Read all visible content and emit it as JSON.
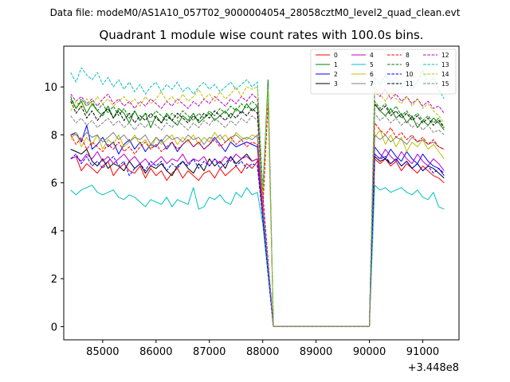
{
  "chart_data": {
    "type": "line",
    "supertitle": "Data file: modeM0/AS1A10_057T02_9000004054_28058cztM0_level2_quad_clean.evt",
    "title": "Quadrant 1 module wise count rates with 100.0s bins.",
    "xlabel": "",
    "ylabel": "",
    "x_offset_label": "+3.448e8",
    "xlim": [
      84270,
      91680
    ],
    "ylim": [
      -0.55,
      11.7
    ],
    "x_ticks": [
      85000,
      86000,
      87000,
      88000,
      89000,
      90000,
      91000
    ],
    "x_tick_labels": [
      "85000",
      "86000",
      "87000",
      "88000",
      "89000",
      "90000",
      "91000"
    ],
    "y_ticks": [
      0,
      2,
      4,
      6,
      8,
      10
    ],
    "y_tick_labels": [
      "0",
      "2",
      "4",
      "6",
      "8",
      "10"
    ],
    "legend_position": "top-right",
    "x_seg1": {
      "start": 84400,
      "step": 100,
      "count": 37
    },
    "x_seg2": {
      "start": 90100,
      "step": 100,
      "count": 14
    },
    "series": [
      {
        "name": "0",
        "color": "#ff0000",
        "dash": "solid",
        "seg1": [
          7.0,
          7.1,
          6.5,
          6.8,
          6.6,
          6.4,
          6.7,
          6.9,
          6.3,
          6.6,
          6.8,
          6.5,
          6.4,
          6.7,
          6.2,
          6.6,
          6.3,
          6.5,
          6.1,
          6.4,
          6.6,
          6.2,
          6.5,
          6.3,
          6.1,
          6.4,
          6.5,
          6.2,
          6.6,
          6.3,
          6.5,
          6.7,
          6.4,
          6.8,
          6.6,
          6.9,
          4.6
        ],
        "seg2": [
          7.0,
          6.8,
          7.0,
          6.7,
          6.9,
          6.5,
          6.8,
          6.6,
          6.4,
          6.7,
          6.5,
          6.3,
          6.2,
          6.0
        ]
      },
      {
        "name": "1",
        "color": "#008000",
        "dash": "solid",
        "seg1": [
          9.5,
          9.1,
          9.4,
          8.9,
          9.3,
          9.0,
          8.8,
          9.2,
          8.7,
          9.1,
          8.9,
          8.5,
          9.0,
          8.6,
          8.9,
          8.3,
          8.8,
          8.5,
          8.9,
          8.6,
          8.4,
          8.8,
          8.6,
          8.9,
          8.5,
          8.7,
          8.9,
          8.6,
          8.8,
          9.0,
          8.7,
          9.1,
          8.9,
          9.3,
          9.0,
          9.2,
          5.5
        ],
        "seg2": [
          9.3,
          9.0,
          8.8,
          9.1,
          8.7,
          8.9,
          8.5,
          8.8,
          8.3,
          8.6,
          8.4,
          8.7,
          8.5,
          8.2
        ]
      },
      {
        "name": "2",
        "color": "#0000ff",
        "dash": "solid",
        "seg1": [
          8.0,
          8.1,
          7.7,
          8.4,
          7.4,
          7.6,
          7.9,
          7.5,
          7.7,
          7.2,
          7.6,
          7.8,
          7.4,
          7.7,
          7.3,
          7.6,
          7.5,
          7.8,
          7.4,
          7.7,
          7.3,
          7.6,
          7.8,
          7.5,
          7.7,
          7.4,
          7.6,
          7.9,
          7.6,
          7.3,
          7.7,
          7.5,
          7.6,
          7.7,
          7.6,
          7.5,
          4.9
        ],
        "seg2": [
          7.5,
          7.2,
          7.0,
          7.4,
          7.1,
          6.9,
          7.3,
          7.0,
          6.8,
          7.2,
          6.9,
          6.7,
          6.6,
          6.3
        ]
      },
      {
        "name": "3",
        "color": "#000000",
        "dash": "solid",
        "seg1": [
          7.4,
          7.3,
          7.2,
          7.4,
          6.9,
          6.7,
          7.0,
          6.6,
          6.8,
          6.7,
          6.5,
          6.9,
          6.6,
          6.8,
          6.4,
          6.7,
          6.6,
          6.8,
          6.5,
          6.3,
          6.7,
          6.9,
          6.6,
          6.4,
          6.8,
          6.5,
          7.0,
          6.7,
          6.9,
          6.6,
          7.1,
          6.8,
          7.0,
          7.2,
          6.9,
          7.0,
          4.7
        ],
        "seg2": [
          7.1,
          6.9,
          7.0,
          6.8,
          7.0,
          6.7,
          6.9,
          6.6,
          6.8,
          6.5,
          6.7,
          6.6,
          6.4,
          6.2
        ]
      },
      {
        "name": "4",
        "color": "#bf00bf",
        "dash": "solid",
        "seg1": [
          7.0,
          7.1,
          6.9,
          7.2,
          7.0,
          7.3,
          6.9,
          7.1,
          6.8,
          7.0,
          7.2,
          6.9,
          7.1,
          6.8,
          7.0,
          6.7,
          6.9,
          7.1,
          6.8,
          7.0,
          6.9,
          7.2,
          6.8,
          7.0,
          6.9,
          7.1,
          6.7,
          7.0,
          6.8,
          7.1,
          6.9,
          7.2,
          7.0,
          7.1,
          6.9,
          7.0,
          4.6
        ],
        "seg2": [
          7.2,
          7.0,
          7.4,
          7.1,
          6.9,
          7.3,
          7.0,
          6.8,
          7.2,
          6.9,
          6.7,
          7.0,
          6.8,
          6.5
        ]
      },
      {
        "name": "5",
        "color": "#00bfbf",
        "dash": "solid",
        "seg1": [
          5.7,
          5.5,
          5.7,
          5.8,
          5.9,
          5.6,
          5.5,
          5.6,
          5.7,
          5.4,
          5.3,
          5.5,
          5.4,
          5.2,
          5.0,
          5.3,
          5.2,
          5.1,
          5.4,
          5.0,
          5.3,
          5.2,
          5.1,
          5.8,
          4.9,
          5.0,
          5.4,
          5.3,
          5.5,
          5.2,
          5.1,
          5.6,
          5.4,
          5.8,
          5.5,
          5.6,
          4.3
        ],
        "seg2": [
          5.9,
          5.7,
          5.8,
          5.6,
          5.7,
          5.8,
          5.6,
          5.5,
          5.7,
          5.4,
          5.3,
          5.6,
          5.0,
          4.9
        ]
      },
      {
        "name": "6",
        "color": "#bfbf00",
        "dash": "solid",
        "seg1": [
          7.8,
          8.1,
          7.5,
          7.9,
          7.6,
          8.0,
          7.4,
          7.8,
          7.6,
          8.0,
          7.5,
          7.7,
          8.0,
          7.6,
          7.8,
          7.4,
          7.9,
          7.6,
          7.8,
          8.0,
          7.6,
          7.9,
          7.7,
          8.0,
          7.6,
          7.9,
          7.7,
          8.1,
          7.8,
          8.0,
          7.7,
          8.1,
          7.9,
          7.8,
          8.0,
          7.9,
          5.0
        ],
        "seg2": [
          7.9,
          8.2,
          7.6,
          8.0,
          7.5,
          7.9,
          7.3,
          7.7,
          7.5,
          7.8,
          7.4,
          7.6,
          7.3,
          7.0
        ]
      },
      {
        "name": "7",
        "color": "#808080",
        "dash": "solid",
        "seg1": [
          8.0,
          8.0,
          7.8,
          8.1,
          7.9,
          8.0,
          7.7,
          7.9,
          8.1,
          7.8,
          8.0,
          7.7,
          7.9,
          7.8,
          8.0,
          7.6,
          7.9,
          7.7,
          8.0,
          7.8,
          7.9,
          7.7,
          8.0,
          7.8,
          7.9,
          7.6,
          7.9,
          7.8,
          8.0,
          7.7,
          7.9,
          8.0,
          7.8,
          7.9,
          7.8,
          8.0,
          5.0
        ],
        "seg2": [
          8.0,
          7.8,
          8.0,
          7.7,
          7.9,
          7.8,
          7.6,
          7.9,
          7.7,
          7.8,
          7.6,
          7.7,
          7.5,
          7.4
        ]
      },
      {
        "name": "8",
        "color": "#ff0000",
        "dash": "dashed",
        "seg1": [
          8.0,
          7.6,
          7.9,
          7.4,
          7.7,
          7.5,
          7.3,
          7.6,
          7.4,
          7.7,
          7.3,
          7.5,
          7.2,
          7.5,
          7.7,
          7.4,
          7.6,
          7.3,
          7.5,
          7.7,
          7.4,
          7.6,
          7.8,
          7.5,
          7.7,
          7.4,
          7.6,
          7.8,
          7.5,
          7.7,
          7.9,
          7.6,
          7.8,
          7.5,
          7.7,
          7.6,
          4.8
        ],
        "seg2": [
          8.5,
          8.2,
          8.0,
          8.3,
          7.9,
          8.1,
          7.8,
          8.0,
          7.7,
          7.9,
          7.6,
          7.8,
          7.5,
          7.4
        ]
      },
      {
        "name": "9",
        "color": "#008000",
        "dash": "dashed",
        "seg1": [
          9.6,
          9.1,
          9.5,
          9.2,
          9.4,
          9.0,
          9.3,
          8.9,
          9.2,
          8.8,
          9.1,
          8.7,
          9.0,
          8.6,
          8.9,
          8.7,
          9.0,
          8.8,
          8.6,
          8.9,
          8.7,
          9.0,
          8.8,
          8.6,
          8.9,
          8.7,
          9.0,
          8.8,
          9.1,
          8.9,
          9.2,
          9.0,
          9.3,
          9.1,
          9.4,
          9.2,
          5.4
        ],
        "seg2": [
          9.4,
          9.1,
          9.3,
          8.9,
          9.2,
          8.8,
          9.0,
          8.7,
          8.9,
          8.6,
          8.8,
          8.5,
          8.7,
          8.3
        ]
      },
      {
        "name": "10",
        "color": "#0000ff",
        "dash": "dashed",
        "seg1": [
          7.0,
          7.2,
          6.8,
          7.1,
          6.7,
          6.9,
          6.6,
          6.9,
          7.1,
          6.7,
          6.9,
          6.3,
          6.6,
          6.8,
          6.5,
          6.9,
          6.7,
          6.9,
          6.5,
          6.8,
          6.6,
          6.9,
          6.7,
          7.0,
          6.6,
          6.9,
          6.7,
          7.0,
          6.6,
          6.8,
          7.1,
          6.7,
          6.9,
          6.6,
          6.8,
          6.7,
          4.5
        ],
        "seg2": [
          7.2,
          7.0,
          7.1,
          6.8,
          7.0,
          6.7,
          6.9,
          6.6,
          6.8,
          6.5,
          6.7,
          6.4,
          6.6,
          6.4
        ]
      },
      {
        "name": "11",
        "color": "#000000",
        "dash": "dashed",
        "seg1": [
          9.4,
          8.9,
          9.2,
          8.7,
          9.0,
          8.6,
          8.9,
          9.1,
          8.7,
          9.0,
          8.6,
          8.9,
          8.5,
          8.8,
          8.6,
          8.9,
          8.7,
          8.5,
          8.8,
          8.6,
          8.9,
          8.7,
          8.5,
          8.8,
          8.6,
          8.9,
          8.7,
          9.0,
          8.8,
          8.6,
          8.9,
          8.7,
          9.0,
          8.8,
          9.1,
          8.9,
          5.3
        ],
        "seg2": [
          9.3,
          9.0,
          9.2,
          8.8,
          9.0,
          8.7,
          8.9,
          8.6,
          8.8,
          8.5,
          8.7,
          8.4,
          8.6,
          8.3
        ]
      },
      {
        "name": "12",
        "color": "#bf00bf",
        "dash": "dashed",
        "seg1": [
          9.7,
          9.4,
          9.6,
          9.3,
          9.5,
          9.2,
          9.5,
          9.7,
          9.3,
          9.5,
          9.2,
          9.4,
          9.1,
          9.4,
          9.2,
          9.5,
          9.3,
          9.1,
          9.4,
          9.2,
          9.5,
          9.3,
          9.1,
          9.4,
          9.2,
          9.5,
          9.3,
          9.6,
          9.4,
          9.2,
          9.5,
          9.3,
          9.6,
          9.4,
          9.7,
          9.5,
          5.6
        ],
        "seg2": [
          9.8,
          9.6,
          9.9,
          9.5,
          9.7,
          9.4,
          9.6,
          9.3,
          9.5,
          9.2,
          9.4,
          9.1,
          9.2,
          8.9
        ]
      },
      {
        "name": "13",
        "color": "#00bfbf",
        "dash": "dashed",
        "seg1": [
          10.6,
          10.2,
          10.8,
          10.5,
          10.3,
          10.6,
          10.1,
          10.4,
          10.0,
          10.3,
          9.9,
          10.2,
          9.8,
          10.1,
          9.7,
          10.0,
          10.2,
          9.8,
          10.1,
          9.9,
          10.2,
          9.8,
          10.0,
          9.7,
          10.0,
          10.2,
          9.9,
          10.1,
          9.8,
          10.0,
          10.2,
          9.9,
          10.1,
          10.3,
          10.0,
          10.2,
          5.8
        ],
        "seg2": [
          10.4,
          10.1,
          10.5,
          10.2,
          10.4,
          10.0,
          10.3,
          9.9,
          10.2,
          10.7,
          10.1,
          10.4,
          9.9,
          9.5
        ]
      },
      {
        "name": "14",
        "color": "#bfbf00",
        "dash": "dashed",
        "seg1": [
          9.0,
          9.4,
          9.1,
          9.5,
          9.2,
          9.6,
          9.3,
          9.5,
          9.2,
          9.4,
          9.6,
          9.3,
          9.5,
          9.2,
          9.6,
          9.3,
          9.5,
          9.8,
          9.4,
          9.6,
          9.3,
          9.7,
          9.4,
          9.6,
          9.9,
          9.5,
          9.7,
          9.4,
          9.8,
          9.5,
          9.7,
          10.0,
          9.6,
          10.0,
          9.9,
          10.0,
          5.5
        ],
        "seg2": [
          10.0,
          9.7,
          9.4,
          9.8,
          9.5,
          9.3,
          9.6,
          9.2,
          9.5,
          9.1,
          9.3,
          9.0,
          8.8,
          8.5
        ]
      },
      {
        "name": "15",
        "color": "#808080",
        "dash": "dashed",
        "seg1": [
          8.8,
          8.5,
          8.7,
          8.4,
          8.6,
          8.3,
          8.5,
          8.7,
          8.4,
          8.6,
          8.3,
          8.5,
          8.2,
          8.5,
          8.3,
          8.6,
          8.4,
          8.2,
          8.5,
          8.3,
          8.6,
          8.4,
          8.2,
          8.5,
          8.3,
          8.6,
          8.4,
          8.7,
          8.5,
          8.3,
          8.6,
          8.4,
          8.7,
          8.5,
          8.8,
          8.6,
          5.2
        ],
        "seg2": [
          8.9,
          8.6,
          8.8,
          8.5,
          8.7,
          8.4,
          8.6,
          8.3,
          8.5,
          8.2,
          8.4,
          8.1,
          8.2,
          8.0
        ]
      }
    ],
    "spike_series": [
      {
        "name": "1",
        "color": "#008000",
        "value": 10.3
      },
      {
        "name": "13",
        "color": "#00bfbf",
        "value": 10.0
      },
      {
        "name": "14",
        "color": "#bfbf00",
        "value": 9.9
      },
      {
        "name": "8",
        "color": "#ff0000",
        "value": 9.4
      }
    ]
  }
}
